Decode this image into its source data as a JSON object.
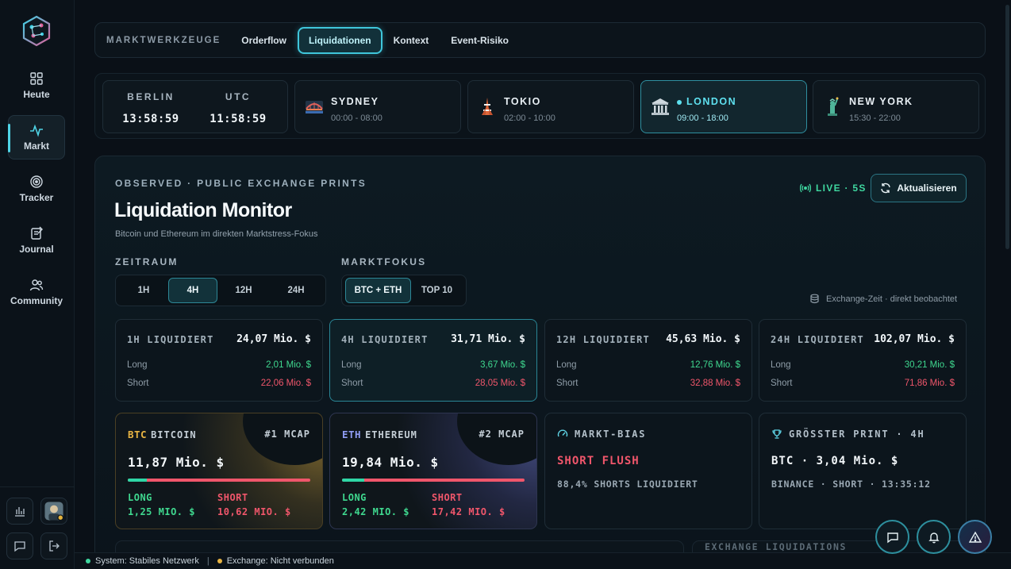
{
  "sidebar": {
    "items": [
      {
        "label": "Heute",
        "icon": "grid-icon"
      },
      {
        "label": "Markt",
        "icon": "activity-icon",
        "active": true
      },
      {
        "label": "Tracker",
        "icon": "target-icon"
      },
      {
        "label": "Journal",
        "icon": "journal-icon"
      },
      {
        "label": "Community",
        "icon": "users-icon"
      }
    ]
  },
  "tabs": {
    "kicker": "MARKTWERKZEUGE",
    "items": [
      {
        "label": "Orderflow"
      },
      {
        "label": "Liquidationen",
        "active": true
      },
      {
        "label": "Kontext"
      },
      {
        "label": "Event-Risiko"
      }
    ]
  },
  "clocks": [
    {
      "label": "BERLIN",
      "time": "13:58:59"
    },
    {
      "label": "UTC",
      "time": "11:58:59"
    }
  ],
  "sessions": [
    {
      "name": "SYDNEY",
      "hours": "00:00 - 08:00",
      "icon": "bridge-icon"
    },
    {
      "name": "TOKIO",
      "hours": "02:00 - 10:00",
      "icon": "tower-icon"
    },
    {
      "name": "LONDON",
      "hours": "09:00 - 18:00",
      "icon": "bank-icon",
      "active": true
    },
    {
      "name": "NEW YORK",
      "hours": "15:30 - 22:00",
      "icon": "liberty-icon"
    }
  ],
  "monitor": {
    "kicker": "OBSERVED · PUBLIC EXCHANGE PRINTS",
    "title": "Liquidation Monitor",
    "subtitle": "Bitcoin und Ethereum im direkten Marktstress-Fokus",
    "live": "LIVE · 5S",
    "refresh_label": "Aktualisieren",
    "timeframe_label": "ZEITRAUM",
    "timeframes": [
      "1H",
      "4H",
      "12H",
      "24H"
    ],
    "timeframe_active": "4H",
    "focus_label": "MARKTFOKUS",
    "focus": [
      "BTC + ETH",
      "TOP 10"
    ],
    "focus_active": "BTC + ETH",
    "exchange_note": "Exchange-Zeit · direkt beobachtet"
  },
  "stats": [
    {
      "label": "1H LIQUIDIERT",
      "total": "24,07 Mio. $",
      "long_label": "Long",
      "long": "2,01 Mio. $",
      "short_label": "Short",
      "short": "22,06 Mio. $"
    },
    {
      "label": "4H LIQUIDIERT",
      "total": "31,71 Mio. $",
      "long_label": "Long",
      "long": "3,67 Mio. $",
      "short_label": "Short",
      "short": "28,05 Mio. $",
      "active": true
    },
    {
      "label": "12H LIQUIDIERT",
      "total": "45,63 Mio. $",
      "long_label": "Long",
      "long": "12,76 Mio. $",
      "short_label": "Short",
      "short": "32,88 Mio. $"
    },
    {
      "label": "24H LIQUIDIERT",
      "total": "102,07 Mio. $",
      "long_label": "Long",
      "long": "30,21 Mio. $",
      "short_label": "Short",
      "short": "71,86 Mio. $"
    }
  ],
  "coins": [
    {
      "symbol": "BTC",
      "name": "BITCOIN",
      "rank": "#1 MCAP",
      "total": "11,87 Mio. $",
      "long_label": "LONG",
      "long": "1,25 MIO. $",
      "short_label": "SHORT",
      "short": "10,62 MIO. $",
      "long_share": 0.105,
      "symbol_color": "#e8b443"
    },
    {
      "symbol": "ETH",
      "name": "ETHEREUM",
      "rank": "#2 MCAP",
      "total": "19,84 Mio. $",
      "long_label": "LONG",
      "long": "2,42 MIO. $",
      "short_label": "SHORT",
      "short": "17,42 MIO. $",
      "long_share": 0.122,
      "symbol_color": "#8f9cf2"
    }
  ],
  "bias": {
    "kicker": "MARKT-BIAS",
    "value": "SHORT FLUSH",
    "sub": "88,4% SHORTS LIQUIDIERT"
  },
  "largest": {
    "kicker": "GRÖSSTER PRINT · 4H",
    "value": "BTC · 3,04 Mio. $",
    "sub": "BINANCE · SHORT · 13:35:12"
  },
  "lower_peek": {
    "label": "EXCHANGE LIQUIDATIONS"
  },
  "status": {
    "system": "System: Stabiles Netzwerk",
    "separator": "|",
    "exchange": "Exchange: Nicht verbunden"
  },
  "colors": {
    "accent": "#3fc6db",
    "long": "#3fd88f",
    "short": "#f0566b",
    "live": "#3fd8a0"
  }
}
